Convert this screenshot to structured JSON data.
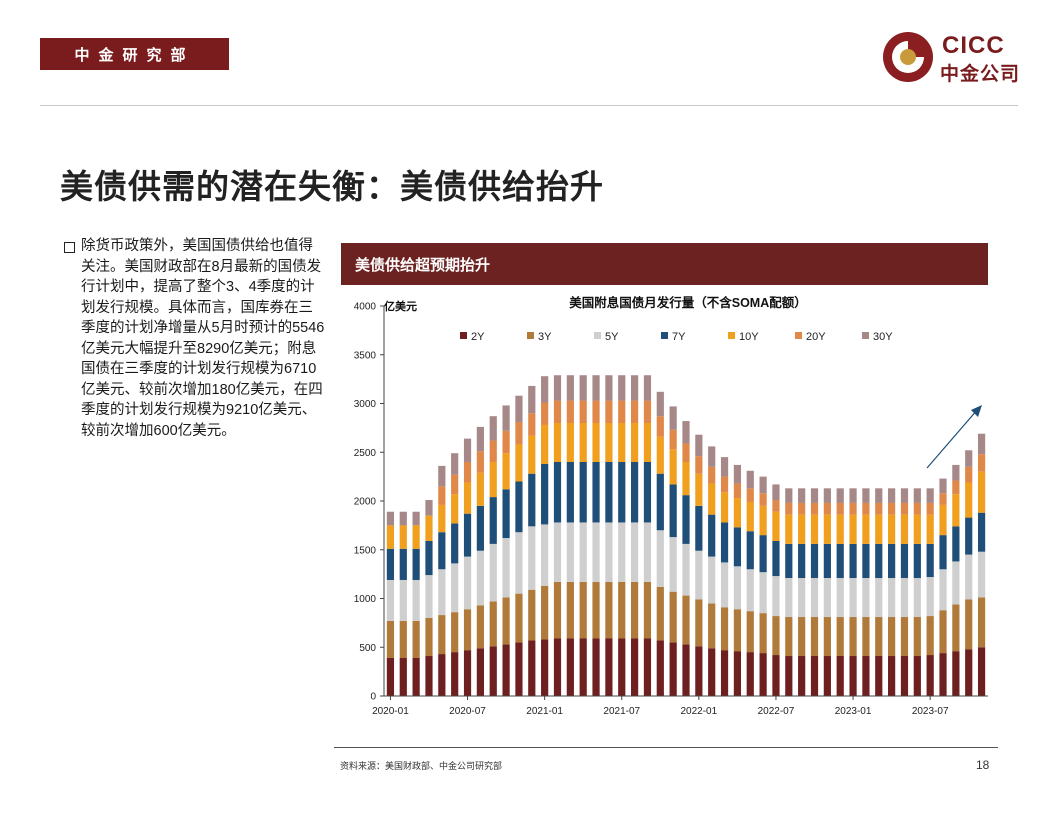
{
  "header": {
    "dept": "中金研究部",
    "logo_en": "CICC",
    "logo_cn": "中金公司"
  },
  "title": "美债供需的潜在失衡：美债供给抬升",
  "body": "除货币政策外，美国国债供给也值得关注。美国财政部在8月最新的国债发行计划中，提高了整个3、4季度的计划发行规模。具体而言，国库券在三季度的计划净增量从5月时预计的5546亿美元大幅提升至8290亿美元；附息国债在三季度的计划发行规模为6710亿美元、较前次增加180亿美元，在四季度的计划发行规模为9210亿美元、较前次增加600亿美元。",
  "chart_banner": "美债供给超预期抬升",
  "chart_data": {
    "type": "bar",
    "stacked": true,
    "title": "美国附息国债月发行量（不含SOMA配额）",
    "ylabel": "亿美元",
    "ylim": [
      0,
      4000
    ],
    "yticks": [
      0,
      500,
      1000,
      1500,
      2000,
      2500,
      3000,
      3500,
      4000
    ],
    "xtick_labels": [
      "2020-01",
      "2020-07",
      "2021-01",
      "2021-07",
      "2022-01",
      "2022-07",
      "2023-01",
      "2023-07"
    ],
    "xtick_every": 6,
    "legend_position": "top-center",
    "categories": [
      "2020-01",
      "2020-02",
      "2020-03",
      "2020-04",
      "2020-05",
      "2020-06",
      "2020-07",
      "2020-08",
      "2020-09",
      "2020-10",
      "2020-11",
      "2020-12",
      "2021-01",
      "2021-02",
      "2021-03",
      "2021-04",
      "2021-05",
      "2021-06",
      "2021-07",
      "2021-08",
      "2021-09",
      "2021-10",
      "2021-11",
      "2021-12",
      "2022-01",
      "2022-02",
      "2022-03",
      "2022-04",
      "2022-05",
      "2022-06",
      "2022-07",
      "2022-08",
      "2022-09",
      "2022-10",
      "2022-11",
      "2022-12",
      "2023-01",
      "2023-02",
      "2023-03",
      "2023-04",
      "2023-05",
      "2023-06",
      "2023-07",
      "2023-08",
      "2023-09",
      "2023-10",
      "2023-11"
    ],
    "series": [
      {
        "name": "2Y",
        "color": "#6e1f1f",
        "values": [
          390,
          390,
          390,
          410,
          430,
          450,
          470,
          490,
          510,
          530,
          550,
          570,
          580,
          590,
          590,
          590,
          590,
          590,
          590,
          590,
          590,
          570,
          550,
          530,
          510,
          490,
          470,
          460,
          450,
          440,
          420,
          410,
          410,
          410,
          410,
          410,
          410,
          410,
          410,
          410,
          410,
          410,
          420,
          440,
          460,
          480,
          500
        ]
      },
      {
        "name": "3Y",
        "color": "#b07a3a",
        "values": [
          380,
          380,
          380,
          390,
          400,
          410,
          420,
          440,
          460,
          480,
          500,
          520,
          550,
          580,
          580,
          580,
          580,
          580,
          580,
          580,
          580,
          550,
          520,
          500,
          480,
          460,
          440,
          430,
          420,
          410,
          400,
          400,
          400,
          400,
          400,
          400,
          400,
          400,
          400,
          400,
          400,
          400,
          400,
          440,
          480,
          510,
          510
        ]
      },
      {
        "name": "5Y",
        "color": "#cfcfcf",
        "values": [
          420,
          420,
          420,
          440,
          470,
          500,
          540,
          560,
          590,
          610,
          630,
          650,
          630,
          610,
          610,
          610,
          610,
          610,
          610,
          610,
          610,
          580,
          560,
          530,
          500,
          480,
          460,
          440,
          430,
          420,
          410,
          400,
          400,
          400,
          400,
          400,
          400,
          400,
          400,
          400,
          400,
          400,
          400,
          420,
          440,
          460,
          470
        ]
      },
      {
        "name": "7Y",
        "color": "#1f4e78",
        "values": [
          320,
          320,
          320,
          350,
          380,
          410,
          440,
          460,
          480,
          500,
          520,
          540,
          620,
          620,
          620,
          620,
          620,
          620,
          620,
          620,
          620,
          580,
          540,
          500,
          460,
          430,
          410,
          400,
          390,
          380,
          360,
          350,
          350,
          350,
          350,
          350,
          350,
          350,
          350,
          350,
          350,
          350,
          340,
          350,
          360,
          380,
          400
        ]
      },
      {
        "name": "10Y",
        "color": "#f0a01e",
        "values": [
          240,
          240,
          240,
          260,
          280,
          300,
          320,
          340,
          360,
          370,
          380,
          390,
          400,
          400,
          400,
          400,
          400,
          400,
          400,
          400,
          400,
          380,
          360,
          340,
          330,
          320,
          310,
          300,
          300,
          300,
          300,
          300,
          300,
          300,
          300,
          300,
          300,
          300,
          300,
          300,
          300,
          300,
          300,
          310,
          330,
          360,
          420
        ]
      },
      {
        "name": "20Y",
        "color": "#e0884a",
        "values": [
          0,
          0,
          0,
          0,
          190,
          200,
          210,
          220,
          220,
          230,
          230,
          230,
          230,
          230,
          230,
          230,
          230,
          230,
          230,
          230,
          230,
          210,
          200,
          190,
          180,
          170,
          160,
          150,
          140,
          130,
          120,
          120,
          120,
          120,
          120,
          120,
          120,
          120,
          120,
          120,
          120,
          120,
          120,
          120,
          140,
          160,
          180
        ]
      },
      {
        "name": "30Y",
        "color": "#a68888",
        "values": [
          140,
          140,
          140,
          160,
          210,
          220,
          240,
          250,
          250,
          260,
          270,
          280,
          270,
          260,
          260,
          260,
          260,
          260,
          260,
          260,
          260,
          250,
          240,
          230,
          220,
          210,
          200,
          190,
          180,
          170,
          160,
          150,
          150,
          150,
          150,
          150,
          150,
          150,
          150,
          150,
          150,
          150,
          150,
          150,
          160,
          170,
          210
        ]
      }
    ],
    "annotation": "trend-arrow-up"
  },
  "footer": {
    "source": "资料来源：美国财政部、中金公司研究部",
    "page": "18"
  }
}
